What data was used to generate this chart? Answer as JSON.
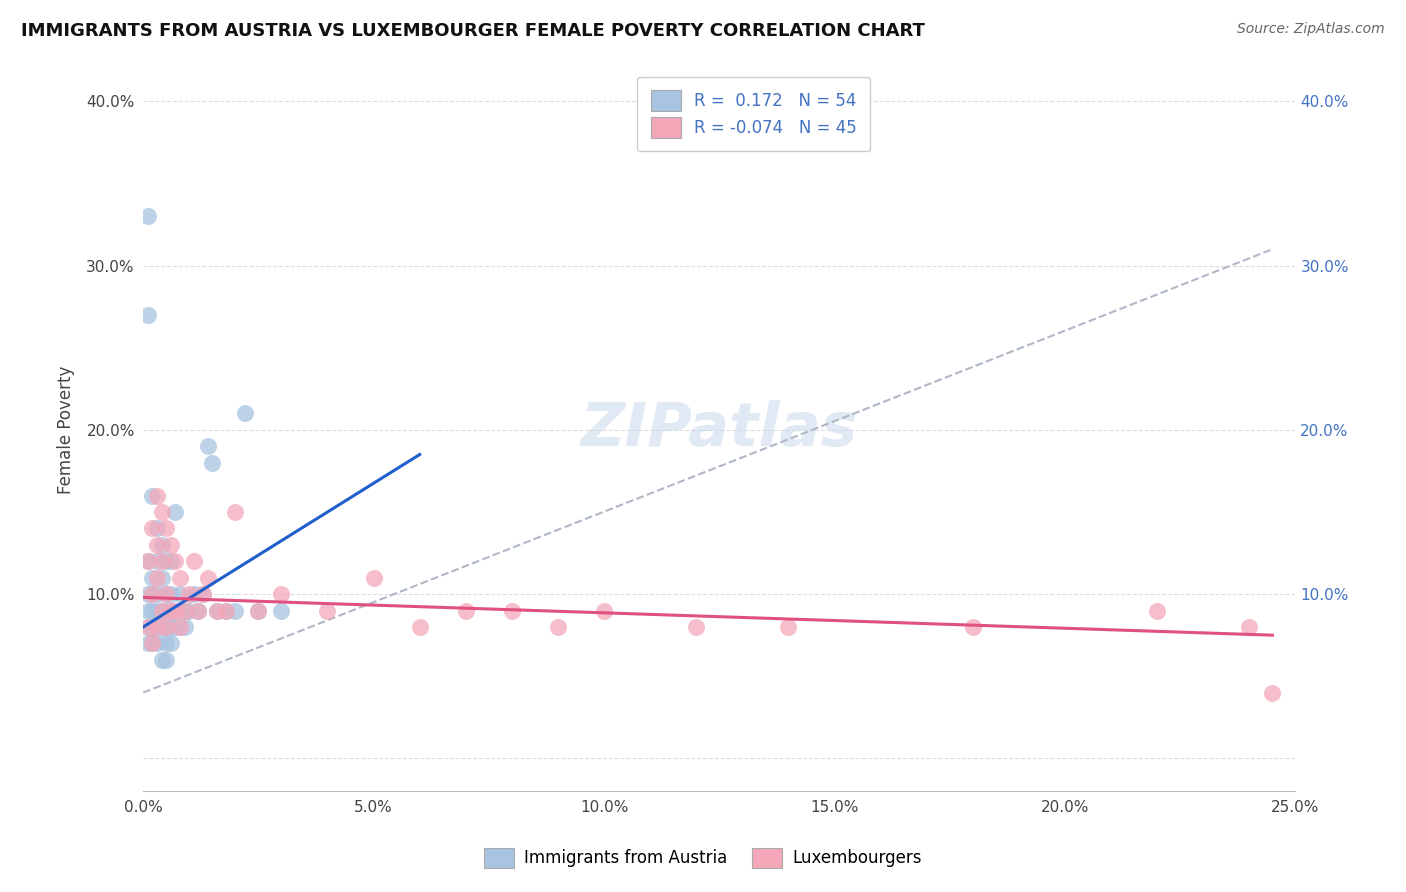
{
  "title": "IMMIGRANTS FROM AUSTRIA VS LUXEMBOURGER FEMALE POVERTY CORRELATION CHART",
  "source_text": "Source: ZipAtlas.com",
  "ylabel": "Female Poverty",
  "legend_label1": "Immigrants from Austria",
  "legend_label2": "Luxembourgers",
  "r1": 0.172,
  "n1": 54,
  "r2": -0.074,
  "n2": 45,
  "xlim": [
    0.0,
    0.25
  ],
  "ylim": [
    -0.02,
    0.42
  ],
  "xtick_vals": [
    0.0,
    0.025,
    0.05,
    0.075,
    0.1,
    0.125,
    0.15,
    0.175,
    0.2,
    0.225,
    0.25
  ],
  "xtick_labels": [
    "0.0%",
    "",
    "5.0%",
    "",
    "10.0%",
    "",
    "15.0%",
    "",
    "20.0%",
    "",
    "25.0%"
  ],
  "ytick_positions": [
    0.0,
    0.1,
    0.2,
    0.3,
    0.4
  ],
  "ytick_labels": [
    "",
    "10.0%",
    "20.0%",
    "30.0%",
    "40.0%"
  ],
  "color1": "#a8c4e0",
  "color2": "#f4a7b9",
  "line_color1": "#1f5fcc",
  "line_color2": "#e05080",
  "watermark": "ZIPatlas",
  "scatter1_x": [
    0.001,
    0.001,
    0.001,
    0.001,
    0.001,
    0.002,
    0.002,
    0.002,
    0.002,
    0.002,
    0.002,
    0.003,
    0.003,
    0.003,
    0.003,
    0.003,
    0.003,
    0.004,
    0.004,
    0.004,
    0.004,
    0.004,
    0.005,
    0.005,
    0.005,
    0.005,
    0.005,
    0.005,
    0.006,
    0.006,
    0.006,
    0.006,
    0.006,
    0.007,
    0.007,
    0.007,
    0.008,
    0.008,
    0.009,
    0.009,
    0.01,
    0.011,
    0.012,
    0.013,
    0.014,
    0.015,
    0.016,
    0.018,
    0.02,
    0.022,
    0.025,
    0.03,
    0.001,
    0.001
  ],
  "scatter1_y": [
    0.07,
    0.08,
    0.09,
    0.1,
    0.12,
    0.07,
    0.08,
    0.09,
    0.1,
    0.11,
    0.16,
    0.07,
    0.08,
    0.09,
    0.1,
    0.12,
    0.14,
    0.06,
    0.08,
    0.09,
    0.11,
    0.13,
    0.06,
    0.07,
    0.08,
    0.09,
    0.1,
    0.12,
    0.07,
    0.08,
    0.09,
    0.1,
    0.12,
    0.08,
    0.09,
    0.15,
    0.08,
    0.1,
    0.08,
    0.09,
    0.09,
    0.1,
    0.09,
    0.1,
    0.19,
    0.18,
    0.09,
    0.09,
    0.09,
    0.21,
    0.09,
    0.09,
    0.27,
    0.33
  ],
  "scatter2_x": [
    0.001,
    0.001,
    0.002,
    0.002,
    0.002,
    0.003,
    0.003,
    0.003,
    0.003,
    0.004,
    0.004,
    0.004,
    0.005,
    0.005,
    0.005,
    0.006,
    0.006,
    0.007,
    0.007,
    0.008,
    0.008,
    0.009,
    0.01,
    0.011,
    0.012,
    0.013,
    0.014,
    0.016,
    0.018,
    0.02,
    0.025,
    0.03,
    0.04,
    0.05,
    0.06,
    0.07,
    0.08,
    0.09,
    0.1,
    0.12,
    0.14,
    0.18,
    0.22,
    0.24,
    0.245
  ],
  "scatter2_y": [
    0.08,
    0.12,
    0.07,
    0.1,
    0.14,
    0.08,
    0.11,
    0.13,
    0.16,
    0.09,
    0.12,
    0.15,
    0.08,
    0.1,
    0.14,
    0.09,
    0.13,
    0.09,
    0.12,
    0.08,
    0.11,
    0.09,
    0.1,
    0.12,
    0.09,
    0.1,
    0.11,
    0.09,
    0.09,
    0.15,
    0.09,
    0.1,
    0.09,
    0.11,
    0.08,
    0.09,
    0.09,
    0.08,
    0.09,
    0.08,
    0.08,
    0.08,
    0.09,
    0.08,
    0.04
  ],
  "dash_line_x": [
    0.0,
    0.245
  ],
  "dash_line_y": [
    0.04,
    0.31
  ]
}
